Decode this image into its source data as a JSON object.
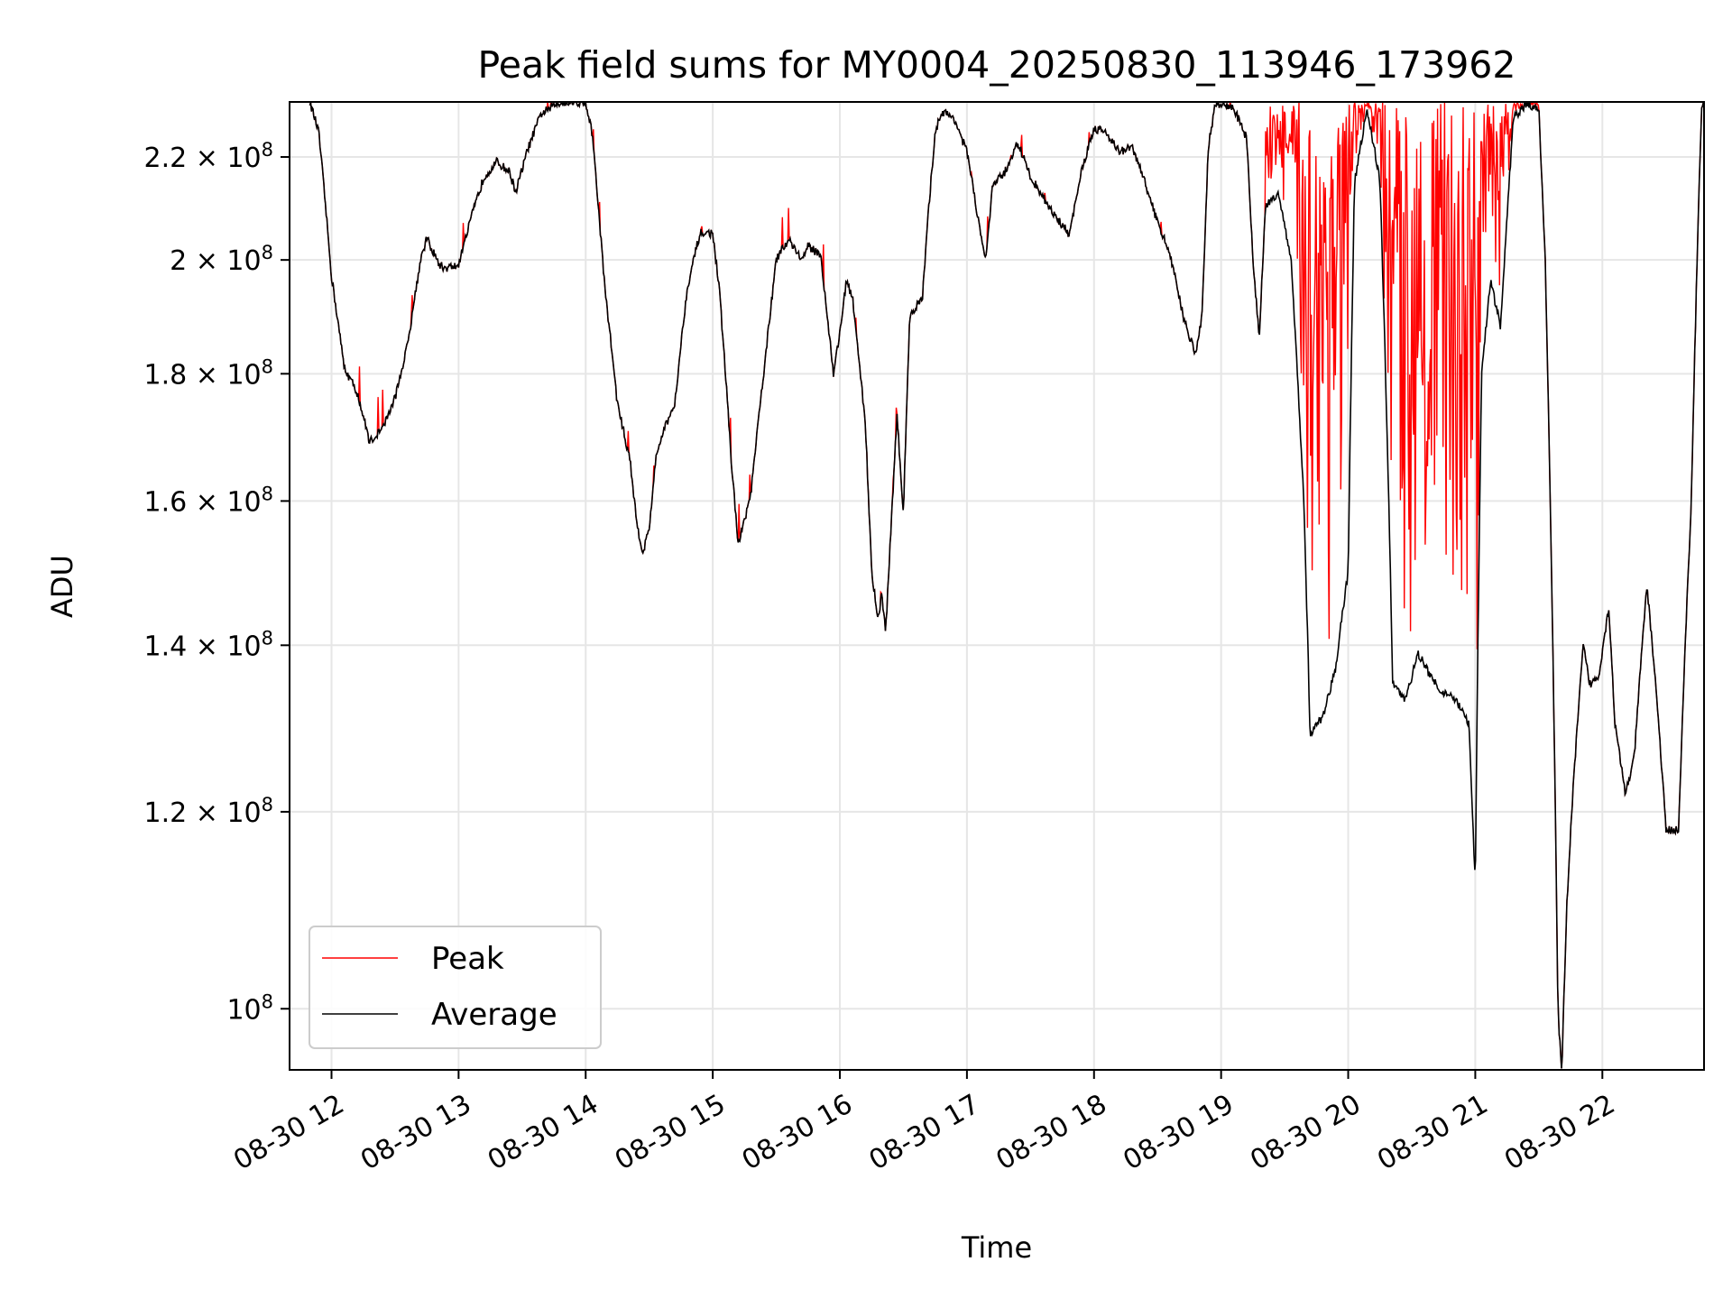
{
  "chart_data": {
    "type": "line",
    "title": "Peak field sums for MY0004_20250830_113946_173962",
    "xlabel": "Time",
    "ylabel": "ADU",
    "yscale": "log",
    "ylim": [
      94500000,
      231500000
    ],
    "xlim": [
      11.67,
      22.8
    ],
    "x_ticks": [
      {
        "value": 12,
        "label": "08-30 12"
      },
      {
        "value": 13,
        "label": "08-30 13"
      },
      {
        "value": 14,
        "label": "08-30 14"
      },
      {
        "value": 15,
        "label": "08-30 15"
      },
      {
        "value": 16,
        "label": "08-30 16"
      },
      {
        "value": 17,
        "label": "08-30 17"
      },
      {
        "value": 18,
        "label": "08-30 18"
      },
      {
        "value": 19,
        "label": "08-30 19"
      },
      {
        "value": 20,
        "label": "08-30 20"
      },
      {
        "value": 21,
        "label": "08-30 21"
      },
      {
        "value": 22,
        "label": "08-30 22"
      }
    ],
    "y_ticks": [
      {
        "value": 100000000,
        "mantissa": "",
        "exp": "8"
      },
      {
        "value": 120000000,
        "mantissa": "1.2",
        "exp": "8"
      },
      {
        "value": 140000000,
        "mantissa": "1.4",
        "exp": "8"
      },
      {
        "value": 160000000,
        "mantissa": "1.6",
        "exp": "8"
      },
      {
        "value": 180000000,
        "mantissa": "1.8",
        "exp": "8"
      },
      {
        "value": 200000000,
        "mantissa": "2",
        "exp": "8"
      },
      {
        "value": 220000000,
        "mantissa": "2.2",
        "exp": "8"
      }
    ],
    "grid": true,
    "legend_position": "bottom-left",
    "series": [
      {
        "name": "Peak",
        "color": "#ff0000",
        "noisy_ranges": [
          [
            19.35,
            21.5
          ]
        ],
        "spike_ranges": [
          [
            11.8,
            19.35
          ]
        ]
      },
      {
        "name": "Average",
        "color": "#000000"
      }
    ],
    "average_points": [
      [
        11.83,
        231500000
      ],
      [
        11.9,
        225000000
      ],
      [
        12.0,
        197000000
      ],
      [
        12.1,
        181000000
      ],
      [
        12.2,
        177000000
      ],
      [
        12.3,
        169000000
      ],
      [
        12.4,
        171000000
      ],
      [
        12.5,
        176000000
      ],
      [
        12.6,
        185000000
      ],
      [
        12.7,
        200000000
      ],
      [
        12.75,
        204000000
      ],
      [
        12.85,
        199000000
      ],
      [
        12.9,
        198500000
      ],
      [
        13.0,
        199000000
      ],
      [
        13.1,
        208000000
      ],
      [
        13.2,
        216000000
      ],
      [
        13.3,
        219000000
      ],
      [
        13.4,
        217000000
      ],
      [
        13.45,
        213000000
      ],
      [
        13.55,
        222000000
      ],
      [
        13.65,
        229000000
      ],
      [
        13.8,
        231500000
      ],
      [
        14.0,
        231500000
      ],
      [
        14.05,
        225000000
      ],
      [
        14.15,
        195000000
      ],
      [
        14.25,
        175000000
      ],
      [
        14.35,
        166000000
      ],
      [
        14.4,
        157000000
      ],
      [
        14.45,
        152500000
      ],
      [
        14.5,
        156000000
      ],
      [
        14.55,
        166000000
      ],
      [
        14.6,
        170000000
      ],
      [
        14.7,
        175000000
      ],
      [
        14.8,
        195000000
      ],
      [
        14.9,
        205000000
      ],
      [
        15.0,
        205000000
      ],
      [
        15.05,
        195000000
      ],
      [
        15.15,
        165000000
      ],
      [
        15.2,
        153500000
      ],
      [
        15.3,
        161000000
      ],
      [
        15.4,
        180000000
      ],
      [
        15.5,
        200000000
      ],
      [
        15.6,
        204000000
      ],
      [
        15.7,
        200000000
      ],
      [
        15.75,
        202500000
      ],
      [
        15.85,
        201000000
      ],
      [
        15.9,
        190000000
      ],
      [
        15.95,
        180000000
      ],
      [
        16.0,
        187000000
      ],
      [
        16.05,
        196000000
      ],
      [
        16.1,
        193000000
      ],
      [
        16.2,
        172000000
      ],
      [
        16.25,
        150000000
      ],
      [
        16.3,
        143000000
      ],
      [
        16.33,
        147000000
      ],
      [
        16.36,
        141500000
      ],
      [
        16.4,
        155000000
      ],
      [
        16.45,
        173000000
      ],
      [
        16.5,
        158000000
      ],
      [
        16.55,
        190000000
      ],
      [
        16.65,
        193000000
      ],
      [
        16.7,
        210000000
      ],
      [
        16.75,
        225000000
      ],
      [
        16.8,
        229500000
      ],
      [
        16.9,
        228000000
      ],
      [
        17.0,
        221000000
      ],
      [
        17.1,
        206000000
      ],
      [
        17.15,
        200000000
      ],
      [
        17.2,
        214000000
      ],
      [
        17.3,
        217000000
      ],
      [
        17.4,
        223000000
      ],
      [
        17.5,
        216000000
      ],
      [
        17.6,
        212000000
      ],
      [
        17.7,
        208000000
      ],
      [
        17.8,
        205000000
      ],
      [
        17.85,
        210000000
      ],
      [
        17.9,
        217000000
      ],
      [
        18.0,
        226000000
      ],
      [
        18.1,
        225000000
      ],
      [
        18.2,
        221000000
      ],
      [
        18.3,
        222000000
      ],
      [
        18.4,
        215000000
      ],
      [
        18.5,
        207000000
      ],
      [
        18.6,
        201000000
      ],
      [
        18.7,
        190000000
      ],
      [
        18.8,
        183000000
      ],
      [
        18.85,
        190000000
      ],
      [
        18.9,
        222000000
      ],
      [
        18.95,
        230500000
      ],
      [
        19.0,
        231000000
      ],
      [
        19.1,
        230000000
      ],
      [
        19.2,
        224000000
      ],
      [
        19.25,
        200000000
      ],
      [
        19.3,
        186000000
      ],
      [
        19.35,
        210000000
      ],
      [
        19.45,
        213000000
      ],
      [
        19.55,
        200000000
      ],
      [
        19.65,
        160000000
      ],
      [
        19.7,
        129000000
      ],
      [
        19.8,
        131000000
      ],
      [
        19.9,
        137000000
      ],
      [
        20.0,
        150000000
      ],
      [
        20.05,
        215000000
      ],
      [
        20.15,
        230000000
      ],
      [
        20.25,
        215000000
      ],
      [
        20.35,
        135000000
      ],
      [
        20.45,
        133000000
      ],
      [
        20.55,
        139000000
      ],
      [
        20.65,
        136000000
      ],
      [
        20.75,
        134000000
      ],
      [
        20.85,
        133000000
      ],
      [
        20.95,
        130000000
      ],
      [
        21.0,
        112000000
      ],
      [
        21.05,
        180000000
      ],
      [
        21.12,
        196000000
      ],
      [
        21.2,
        188000000
      ],
      [
        21.3,
        228000000
      ],
      [
        21.4,
        231000000
      ],
      [
        21.5,
        230000000
      ],
      [
        21.55,
        200000000
      ],
      [
        21.6,
        150000000
      ],
      [
        21.65,
        100000000
      ],
      [
        21.68,
        94000000
      ],
      [
        21.72,
        110000000
      ],
      [
        21.78,
        125000000
      ],
      [
        21.85,
        140000000
      ],
      [
        21.9,
        135000000
      ],
      [
        21.97,
        136000000
      ],
      [
        22.05,
        145000000
      ],
      [
        22.1,
        130000000
      ],
      [
        22.18,
        122000000
      ],
      [
        22.25,
        126000000
      ],
      [
        22.35,
        148000000
      ],
      [
        22.42,
        135000000
      ],
      [
        22.5,
        118000000
      ],
      [
        22.6,
        118000000
      ],
      [
        22.7,
        160000000
      ],
      [
        22.78,
        230000000
      ],
      [
        22.8,
        231500000
      ]
    ]
  }
}
